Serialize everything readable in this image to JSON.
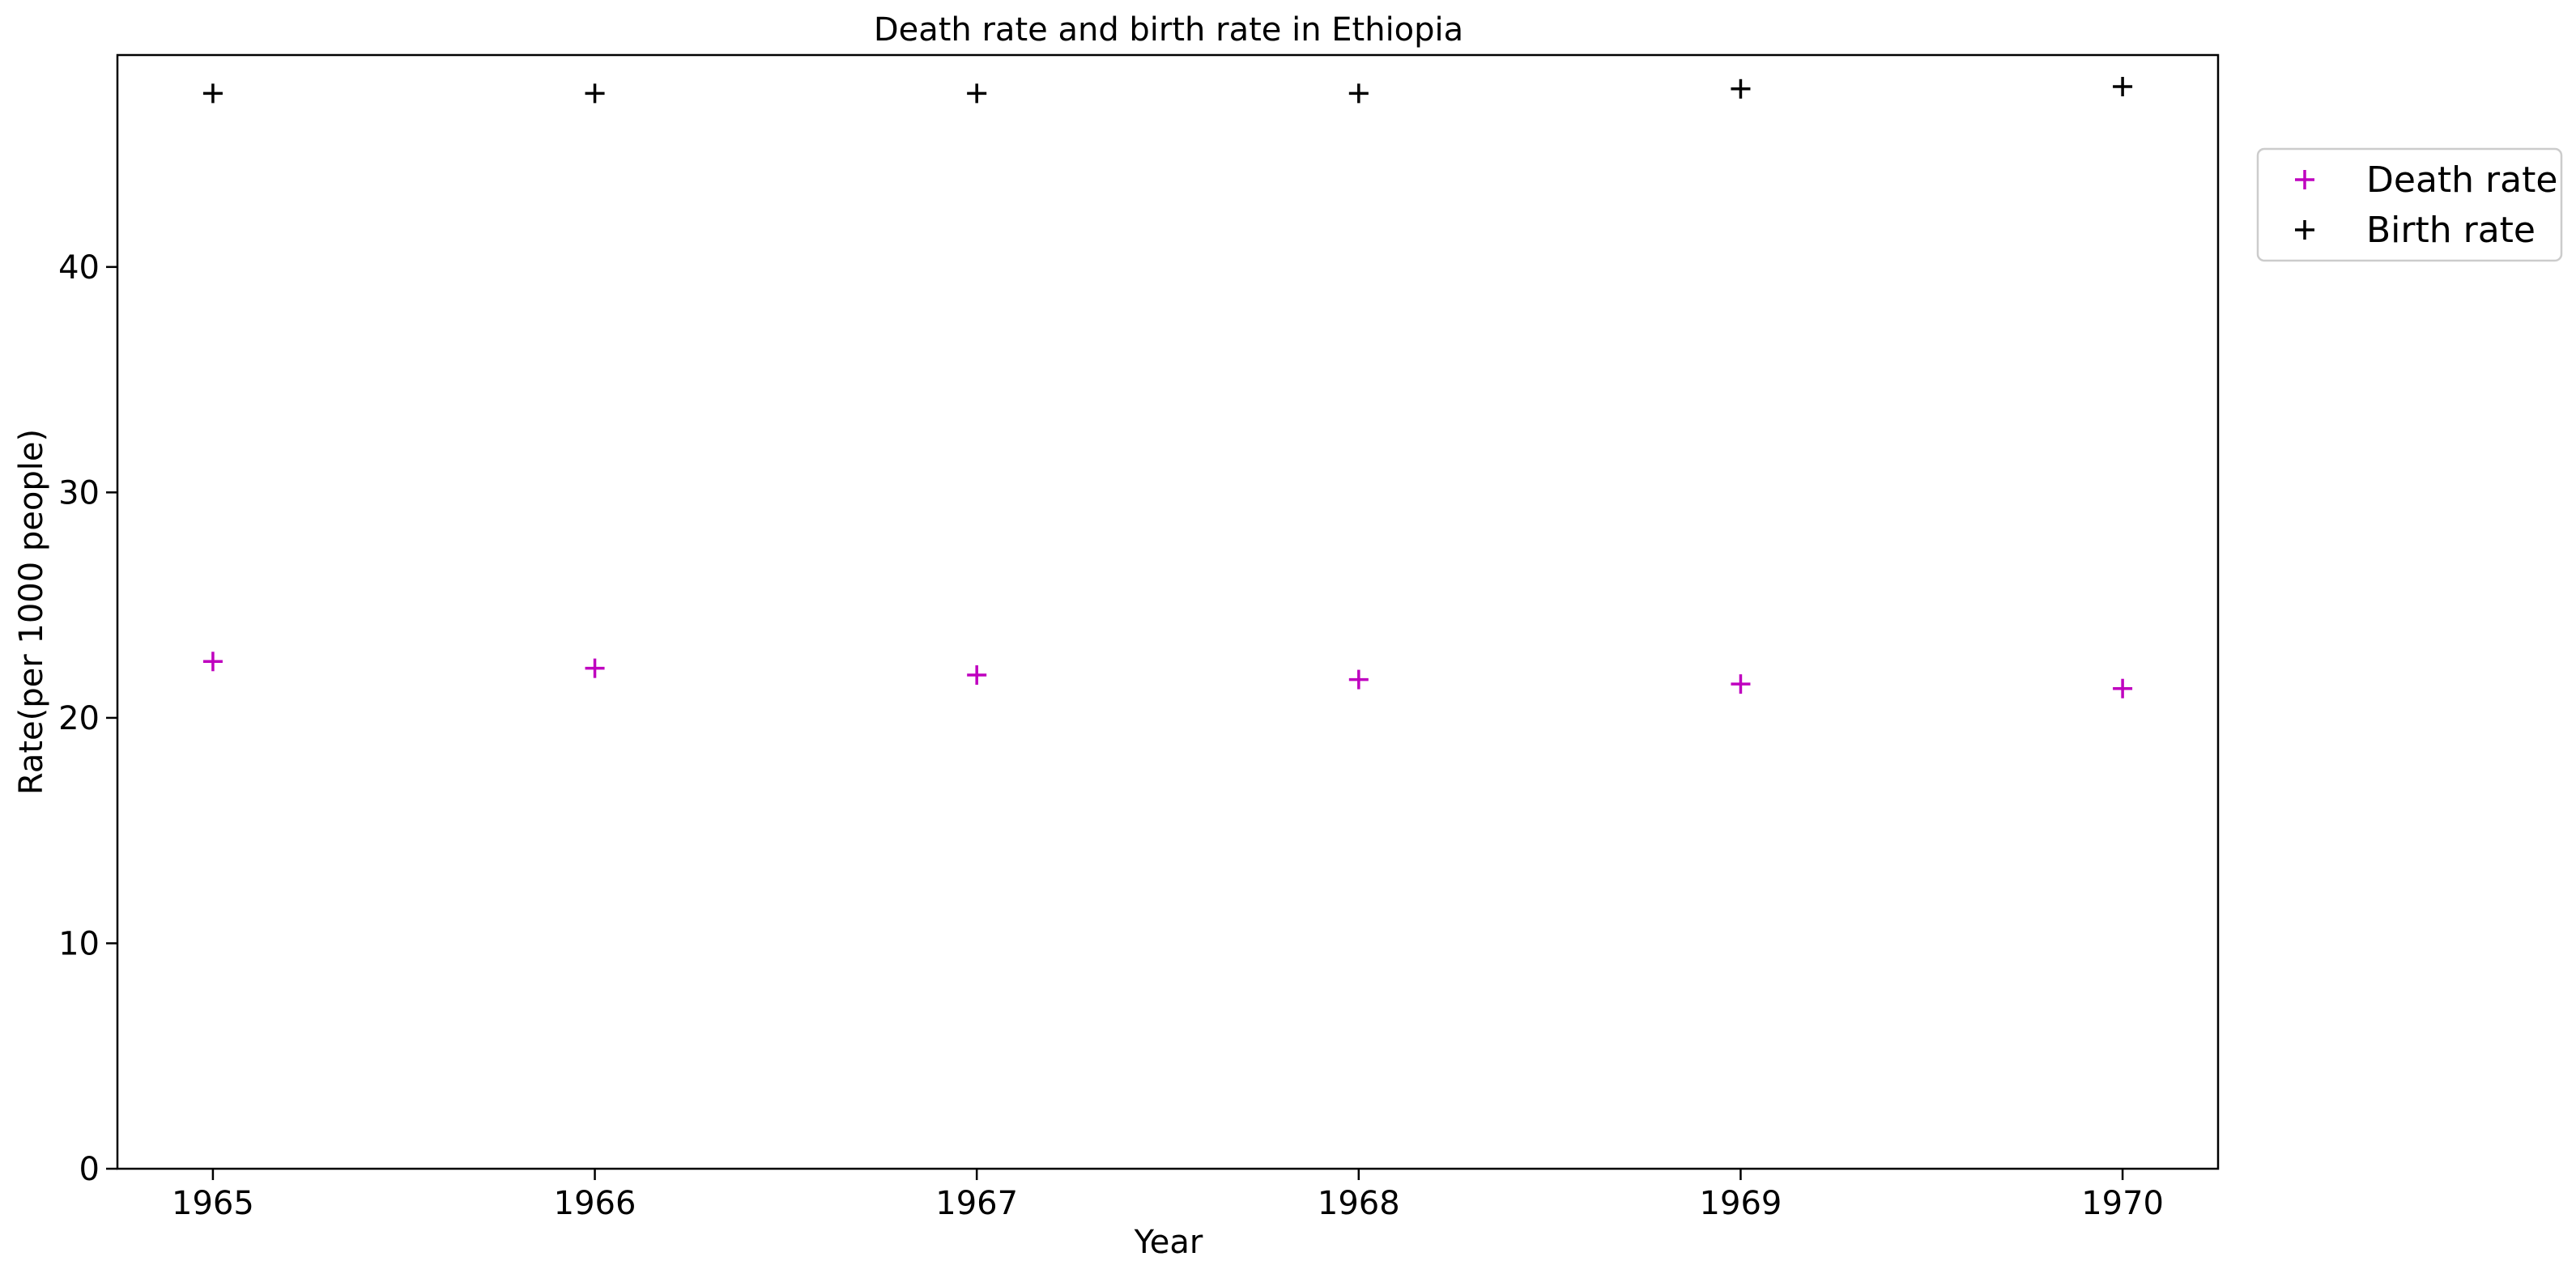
{
  "chart_data": {
    "type": "scatter",
    "title": "Death rate and birth rate in Ethiopia",
    "xlabel": "Year",
    "ylabel": "Rate(per 1000 people)",
    "x": [
      "1965",
      "1966",
      "1967",
      "1968",
      "1969",
      "1970"
    ],
    "xlim": [
      1964.75,
      1970.25
    ],
    "ylim": [
      0,
      49.4
    ],
    "yticks": [
      "0",
      "10",
      "20",
      "30",
      "40"
    ],
    "grid": false,
    "legend_position": "outside-top-right",
    "marker": "plus",
    "series": [
      {
        "name": "Death rate",
        "color": "#bf00bf",
        "values": [
          22.5,
          22.2,
          21.9,
          21.7,
          21.5,
          21.3
        ]
      },
      {
        "name": "Birth rate",
        "color": "#000000",
        "values": [
          47.7,
          47.7,
          47.7,
          47.7,
          47.9,
          48.0
        ]
      }
    ]
  }
}
